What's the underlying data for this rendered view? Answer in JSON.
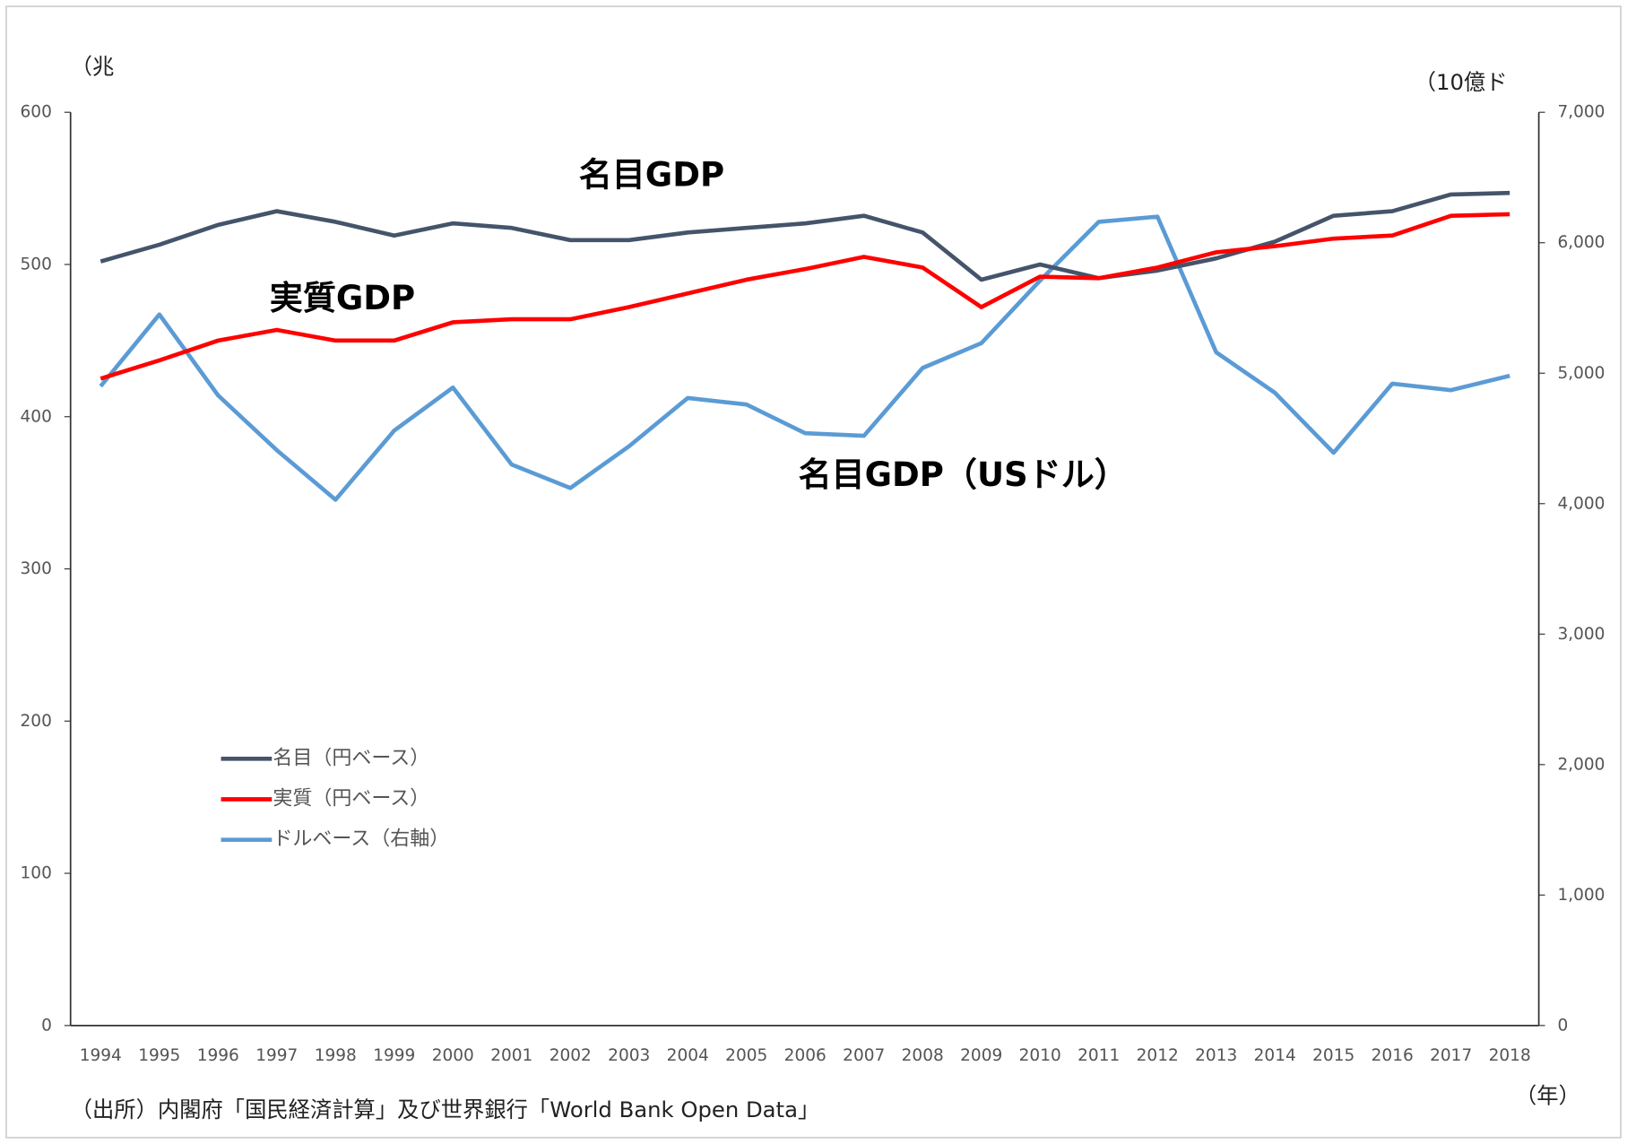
{
  "chart_data": {
    "type": "line",
    "y_label": "（兆",
    "y2_label": "（10億ド",
    "x_label": "（年）",
    "source": "（出所）内閣府「国民経済計算」及び世界銀行「World Bank Open Data」",
    "annotations": [
      "名目GDP",
      "実質GDP",
      "名目GDP（USドル）"
    ],
    "categories": [
      "1994",
      "1995",
      "1996",
      "1997",
      "1998",
      "1999",
      "2000",
      "2001",
      "2002",
      "2003",
      "2004",
      "2005",
      "2006",
      "2007",
      "2008",
      "2009",
      "2010",
      "2011",
      "2012",
      "2013",
      "2014",
      "2015",
      "2016",
      "2017",
      "2018"
    ],
    "series": [
      {
        "name": "名目（円ベース）",
        "color": "#44546a",
        "values": [
          502,
          513,
          526,
          535,
          528,
          519,
          527,
          524,
          516,
          516,
          521,
          524,
          527,
          532,
          521,
          490,
          500,
          491,
          496,
          504,
          515,
          532,
          535,
          546,
          547
        ]
      },
      {
        "name": "実質（円ベース）",
        "color": "#ff0000",
        "values": [
          425,
          437,
          450,
          457,
          450,
          450,
          462,
          464,
          464,
          472,
          481,
          490,
          497,
          505,
          498,
          472,
          492,
          491,
          498,
          508,
          512,
          517,
          519,
          532,
          533
        ]
      },
      {
        "name": "ドルベース（右軸）",
        "color": "#5b9bd5",
        "axis": "y2",
        "values": [
          4900,
          5450,
          4830,
          4410,
          4030,
          4560,
          4890,
          4300,
          4120,
          4440,
          4810,
          4760,
          4540,
          4520,
          5040,
          5230,
          5710,
          6160,
          6200,
          5160,
          4850,
          4390,
          4920,
          4870,
          4980
        ]
      }
    ],
    "ylim": [
      0,
      600
    ],
    "yticks": [
      0,
      100,
      200,
      300,
      400,
      500,
      600
    ],
    "y2lim": [
      0,
      7000
    ],
    "y2ticks": [
      0,
      {
        "value": 1000,
        "label": "1,000"
      },
      {
        "value": 2000,
        "label": "2,000"
      },
      {
        "value": 3000,
        "label": "3,000"
      },
      {
        "value": 4000,
        "label": "4,000"
      },
      {
        "value": 5000,
        "label": "5,000"
      },
      {
        "value": 6000,
        "label": "6,000"
      },
      {
        "value": 7000,
        "label": "7,000"
      }
    ],
    "legend": "lower-left"
  }
}
